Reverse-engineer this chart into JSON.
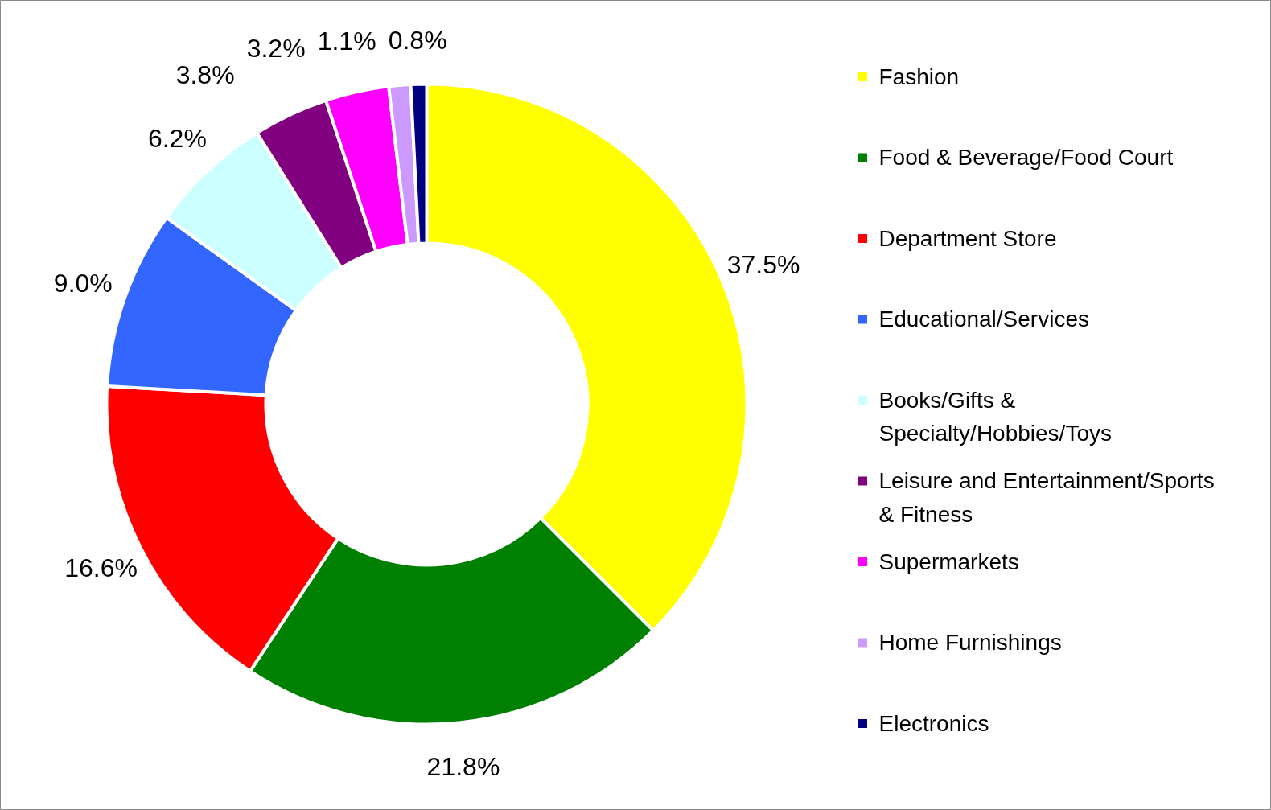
{
  "chart_data": {
    "type": "donut",
    "categories": [
      "Fashion",
      "Food & Beverage/Food Court",
      "Department Store",
      "Educational/Services",
      "Books/Gifts & Specialty/Hobbies/Toys",
      "Leisure and Entertainment/Sports & Fitness",
      "Supermarkets",
      "Home Furnishings",
      "Electronics"
    ],
    "values": [
      37.5,
      21.8,
      16.6,
      9.0,
      6.2,
      3.8,
      3.2,
      1.1,
      0.8
    ],
    "colors": [
      "#ffff00",
      "#008000",
      "#ff0000",
      "#3366ff",
      "#ccffff",
      "#800080",
      "#ff00ff",
      "#cc99ff",
      "#000080"
    ],
    "value_labels": [
      "37.5%",
      "21.8%",
      "16.6%",
      "9.0%",
      "6.2%",
      "3.8%",
      "3.2%",
      "1.1%",
      "0.8%"
    ],
    "legend": "right"
  }
}
